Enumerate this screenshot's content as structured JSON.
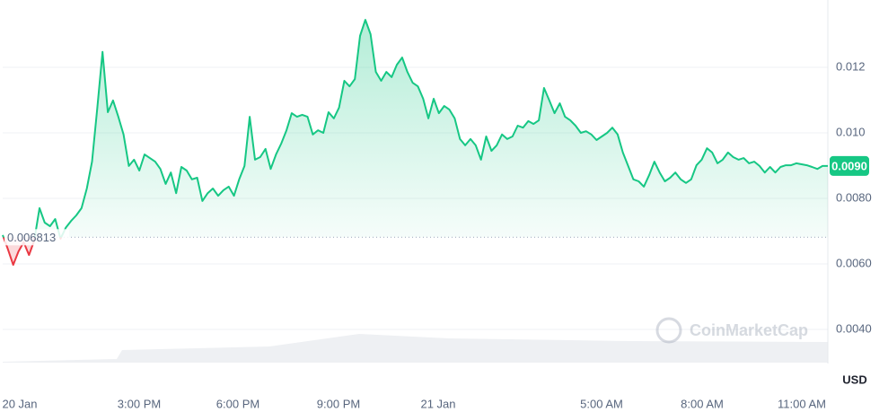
{
  "chart_data": {
    "type": "line",
    "color": "#16c784",
    "down_color": "#ea3943",
    "grid": true,
    "ylim": [
      0.003,
      0.014
    ],
    "yticks": [
      0.012,
      {
        "value": 0.01,
        "label": "0.010"
      },
      {
        "value": 0.008,
        "label": "0.0080"
      },
      {
        "value": 0.006,
        "label": "0.0060"
      },
      {
        "value": 0.004,
        "label": "0.0040"
      }
    ],
    "x_tick_labels": [
      "20 Jan",
      "3:00 PM",
      "6:00 PM",
      "9:00 PM",
      "21 Jan",
      "5:00 AM",
      "8:00 AM",
      "11:00 AM"
    ],
    "baseline": 0.006813,
    "last_label": "0.0090",
    "currency_label": "USD",
    "watermark": "CoinMarketCap",
    "values": [
      0.00688,
      0.00644,
      0.00597,
      0.00638,
      0.00666,
      0.00627,
      0.00671,
      0.0077,
      0.00726,
      0.00715,
      0.00737,
      0.00677,
      0.0071,
      0.00731,
      0.00748,
      0.0077,
      0.0083,
      0.00912,
      0.01077,
      0.01247,
      0.01063,
      0.01099,
      0.01049,
      0.00995,
      0.00899,
      0.00918,
      0.00885,
      0.00934,
      0.00923,
      0.00912,
      0.0089,
      0.00844,
      0.00879,
      0.00816,
      0.00896,
      0.00885,
      0.00858,
      0.00863,
      0.00792,
      0.00816,
      0.0083,
      0.00808,
      0.00825,
      0.00836,
      0.00808,
      0.00858,
      0.00899,
      0.01049,
      0.00918,
      0.00926,
      0.00951,
      0.0089,
      0.00934,
      0.00967,
      0.01008,
      0.0106,
      0.01049,
      0.01055,
      0.01049,
      0.00995,
      0.01008,
      0.01,
      0.01063,
      0.01044,
      0.01077,
      0.01159,
      0.01142,
      0.01164,
      0.01296,
      0.01345,
      0.01301,
      0.01186,
      0.01159,
      0.01186,
      0.0117,
      0.01208,
      0.0123,
      0.01186,
      0.01153,
      0.01142,
      0.01104,
      0.01044,
      0.01104,
      0.0106,
      0.01082,
      0.01071,
      0.01044,
      0.00981,
      0.00962,
      0.00981,
      0.00962,
      0.00918,
      0.00989,
      0.00945,
      0.00962,
      0.00995,
      0.00981,
      0.00989,
      0.01022,
      0.01016,
      0.01036,
      0.01027,
      0.01038,
      0.01137,
      0.01099,
      0.0106,
      0.0109,
      0.01049,
      0.01038,
      0.01022,
      0.01,
      0.01005,
      0.00995,
      0.00978,
      0.00989,
      0.01,
      0.01016,
      0.00995,
      0.0094,
      0.00899,
      0.00858,
      0.00852,
      0.00836,
      0.00871,
      0.00912,
      0.00879,
      0.00852,
      0.00863,
      0.00879,
      0.00858,
      0.00847,
      0.00858,
      0.00901,
      0.00918,
      0.00953,
      0.0094,
      0.00907,
      0.00918,
      0.0094,
      0.00926,
      0.00918,
      0.00923,
      0.00907,
      0.00912,
      0.00899,
      0.00879,
      0.00896,
      0.00879,
      0.00896,
      0.00901,
      0.00901,
      0.00907,
      0.00904,
      0.00901,
      0.00896,
      0.0089,
      0.00899,
      0.00899
    ]
  }
}
